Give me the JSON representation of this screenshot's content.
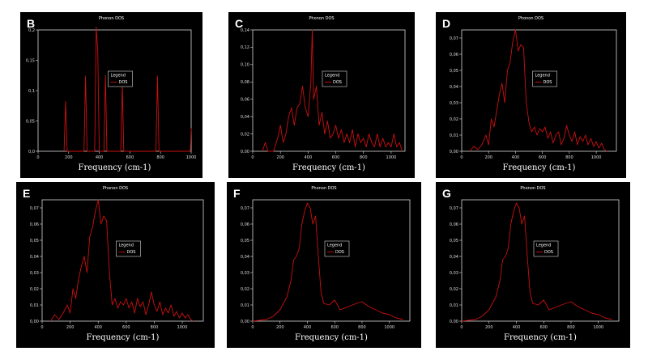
{
  "figure": {
    "panel_letters": [
      "B",
      "C",
      "D",
      "E",
      "F",
      "G"
    ]
  },
  "chart_data": [
    {
      "panel": "B",
      "type": "line",
      "title": "Phonon DOS",
      "xlabel": "Frequency (cm-1)",
      "ylabel": "",
      "xlim": [
        0,
        1000
      ],
      "ylim": [
        0,
        0.2
      ],
      "xticks": [
        0,
        200,
        400,
        600,
        800,
        1000
      ],
      "yticks": [
        0,
        0.05,
        0.1,
        0.15,
        0.2
      ],
      "ytick_labels": [
        "0,0",
        "0,05",
        "0,1",
        "0,15",
        "0,2"
      ],
      "legend": {
        "title": "Legend",
        "entries": [
          "DOS"
        ],
        "placement": "center"
      },
      "color": "#cc1010",
      "series": [
        {
          "name": "DOS",
          "x": [
            170,
            180,
            190,
            300,
            310,
            320,
            370,
            380,
            390,
            400,
            430,
            440,
            450,
            540,
            550,
            560,
            770,
            780,
            790,
            995,
            1000
          ],
          "y": [
            0,
            0.082,
            0,
            0,
            0.124,
            0,
            0,
            0.205,
            0.165,
            0,
            0,
            0.125,
            0,
            0,
            0.11,
            0,
            0,
            0.124,
            0,
            0,
            0.038
          ]
        }
      ]
    },
    {
      "panel": "C",
      "type": "line",
      "title": "Phonon DOS",
      "xlabel": "Frequency (cm-1)",
      "ylabel": "",
      "xlim": [
        0,
        1100
      ],
      "ylim": [
        0,
        0.14
      ],
      "xticks": [
        0,
        200,
        400,
        600,
        800,
        1000
      ],
      "yticks": [
        0,
        0.02,
        0.04,
        0.06,
        0.08,
        0.1,
        0.12,
        0.14
      ],
      "ytick_labels": [
        "0,00",
        "0,02",
        "0,04",
        "0,06",
        "0,08",
        "0,10",
        "0,12",
        "0,14"
      ],
      "legend": {
        "title": "Legend",
        "entries": [
          "DOS"
        ],
        "placement": "center"
      },
      "color": "#cc1010",
      "series": [
        {
          "name": "DOS",
          "x": [
            70,
            90,
            110,
            150,
            180,
            200,
            220,
            240,
            260,
            280,
            300,
            320,
            340,
            360,
            380,
            400,
            420,
            430,
            440,
            460,
            480,
            500,
            520,
            540,
            560,
            580,
            600,
            620,
            640,
            660,
            680,
            700,
            720,
            740,
            760,
            780,
            800,
            820,
            840,
            860,
            880,
            900,
            920,
            940,
            960,
            980,
            1000,
            1020,
            1040,
            1060,
            1080
          ],
          "y": [
            0,
            0.01,
            0,
            0,
            0.015,
            0.03,
            0.01,
            0.02,
            0.04,
            0.05,
            0.03,
            0.05,
            0.055,
            0.075,
            0.05,
            0.04,
            0.08,
            0.14,
            0.06,
            0.075,
            0.03,
            0.045,
            0.02,
            0.035,
            0.015,
            0.02,
            0.03,
            0.015,
            0.025,
            0.01,
            0.02,
            0.01,
            0.025,
            0.005,
            0.02,
            0.01,
            0.015,
            0.005,
            0.02,
            0.01,
            0.005,
            0.02,
            0.005,
            0.015,
            0.005,
            0.01,
            0.005,
            0.02,
            0.005,
            0.01,
            0
          ]
        }
      ]
    },
    {
      "panel": "D",
      "type": "line",
      "title": "Phonon DOS",
      "xlabel": "Frequency (cm-1)",
      "ylabel": "",
      "xlim": [
        0,
        1150
      ],
      "ylim": [
        0,
        0.075
      ],
      "xticks": [
        0,
        200,
        400,
        600,
        800,
        1000
      ],
      "yticks": [
        0,
        0.01,
        0.02,
        0.03,
        0.04,
        0.05,
        0.06,
        0.07
      ],
      "ytick_labels": [
        "0,00",
        "0,01",
        "0,02",
        "0,03",
        "0,04",
        "0,05",
        "0,06",
        "0,07"
      ],
      "legend": {
        "title": "Legend",
        "entries": [
          "DOS"
        ],
        "placement": "center"
      },
      "color": "#cc1010",
      "series": [
        {
          "name": "DOS",
          "x": [
            60,
            90,
            120,
            150,
            180,
            200,
            220,
            240,
            260,
            280,
            300,
            320,
            340,
            360,
            380,
            400,
            420,
            440,
            460,
            480,
            500,
            520,
            540,
            560,
            580,
            600,
            620,
            640,
            660,
            680,
            700,
            720,
            740,
            760,
            780,
            800,
            820,
            840,
            860,
            880,
            900,
            920,
            940,
            960,
            980,
            1000,
            1020,
            1040,
            1060,
            1080
          ],
          "y": [
            0,
            0.003,
            0.001,
            0.004,
            0.01,
            0.004,
            0.02,
            0.015,
            0.025,
            0.035,
            0.042,
            0.03,
            0.05,
            0.055,
            0.068,
            0.075,
            0.062,
            0.066,
            0.064,
            0.03,
            0.018,
            0.012,
            0.015,
            0.01,
            0.014,
            0.012,
            0.015,
            0.008,
            0.012,
            0.005,
            0.01,
            0.012,
            0.004,
            0.008,
            0.016,
            0.01,
            0.006,
            0.012,
            0.004,
            0.009,
            0.006,
            0.01,
            0.004,
            0.008,
            0.003,
            0.006,
            0.002,
            0.005,
            0.001,
            0
          ]
        }
      ]
    },
    {
      "panel": "E",
      "type": "line",
      "title": "Phonon DOS",
      "xlabel": "Frequency (cm-1)",
      "ylabel": "",
      "xlim": [
        0,
        1150
      ],
      "ylim": [
        0,
        0.075
      ],
      "xticks": [
        0,
        200,
        400,
        600,
        800,
        1000
      ],
      "yticks": [
        0,
        0.01,
        0.02,
        0.03,
        0.04,
        0.05,
        0.06,
        0.07
      ],
      "ytick_labels": [
        "0,00",
        "0,01",
        "0,02",
        "0,03",
        "0,04",
        "0,05",
        "0,06",
        "0,07"
      ],
      "legend": {
        "title": "Legend",
        "entries": [
          "DOS"
        ],
        "placement": "center"
      },
      "color": "#cc1010",
      "series": [
        {
          "name": "DOS",
          "x": [
            60,
            90,
            120,
            150,
            180,
            200,
            220,
            240,
            260,
            280,
            300,
            320,
            340,
            360,
            380,
            400,
            420,
            440,
            460,
            480,
            500,
            520,
            540,
            560,
            580,
            600,
            620,
            640,
            660,
            680,
            700,
            720,
            740,
            760,
            780,
            800,
            820,
            840,
            860,
            880,
            900,
            920,
            940,
            960,
            980,
            1000,
            1020,
            1040,
            1060,
            1080
          ],
          "y": [
            0,
            0.004,
            0.001,
            0.005,
            0.01,
            0.005,
            0.02,
            0.014,
            0.026,
            0.034,
            0.04,
            0.03,
            0.052,
            0.058,
            0.068,
            0.075,
            0.06,
            0.065,
            0.062,
            0.03,
            0.01,
            0.014,
            0.008,
            0.012,
            0.01,
            0.014,
            0.008,
            0.012,
            0.005,
            0.014,
            0.009,
            0.012,
            0.004,
            0.01,
            0.018,
            0.01,
            0.006,
            0.012,
            0.004,
            0.008,
            0.005,
            0.01,
            0.003,
            0.006,
            0.002,
            0.005,
            0.002,
            0.004,
            0.001,
            0
          ]
        }
      ]
    },
    {
      "panel": "F",
      "type": "line",
      "title": "Phonon DOS",
      "xlabel": "Frequency (cm-1)",
      "ylabel": "",
      "xlim": [
        0,
        1150
      ],
      "ylim": [
        0,
        0.075
      ],
      "xticks": [
        0,
        200,
        400,
        600,
        800,
        1000
      ],
      "yticks": [
        0,
        0.01,
        0.02,
        0.03,
        0.04,
        0.05,
        0.06,
        0.07
      ],
      "ytick_labels": [
        "0,00",
        "0,01",
        "0,02",
        "0,03",
        "0,04",
        "0,05",
        "0,06",
        "0,07"
      ],
      "legend": {
        "title": "Legend",
        "entries": [
          "DOS"
        ],
        "placement": "center"
      },
      "color": "#cc1010",
      "series": [
        {
          "name": "DOS",
          "x": [
            0,
            50,
            100,
            150,
            200,
            250,
            280,
            300,
            320,
            340,
            360,
            380,
            400,
            420,
            440,
            460,
            480,
            500,
            520,
            560,
            600,
            640,
            700,
            760,
            800,
            850,
            900,
            950,
            1000,
            1050,
            1100
          ],
          "y": [
            0,
            0.0005,
            0.001,
            0.003,
            0.007,
            0.015,
            0.025,
            0.038,
            0.04,
            0.045,
            0.06,
            0.068,
            0.073,
            0.07,
            0.06,
            0.065,
            0.04,
            0.018,
            0.011,
            0.01,
            0.013,
            0.007,
            0.009,
            0.011,
            0.012,
            0.009,
            0.007,
            0.005,
            0.004,
            0.002,
            0.001
          ]
        }
      ]
    },
    {
      "panel": "G",
      "type": "line",
      "title": "Phonon DOS",
      "xlabel": "Frequency (cm-1)",
      "ylabel": "",
      "xlim": [
        0,
        1150
      ],
      "ylim": [
        0,
        0.075
      ],
      "xticks": [
        0,
        200,
        400,
        600,
        800,
        1000
      ],
      "yticks": [
        0,
        0.01,
        0.02,
        0.03,
        0.04,
        0.05,
        0.06,
        0.07
      ],
      "ytick_labels": [
        "0,00",
        "0,01",
        "0,02",
        "0,03",
        "0,04",
        "0,05",
        "0,06",
        "0,07"
      ],
      "legend": {
        "title": "Legend",
        "entries": [
          "DOS"
        ],
        "placement": "center"
      },
      "color": "#cc1010",
      "series": [
        {
          "name": "DOS",
          "x": [
            0,
            50,
            100,
            150,
            200,
            250,
            280,
            300,
            320,
            340,
            360,
            380,
            400,
            420,
            440,
            460,
            480,
            500,
            520,
            560,
            600,
            640,
            700,
            760,
            800,
            850,
            900,
            950,
            1000,
            1050,
            1100
          ],
          "y": [
            0,
            0.0005,
            0.001,
            0.003,
            0.007,
            0.015,
            0.025,
            0.038,
            0.04,
            0.045,
            0.06,
            0.068,
            0.073,
            0.07,
            0.06,
            0.065,
            0.04,
            0.018,
            0.011,
            0.01,
            0.013,
            0.007,
            0.009,
            0.011,
            0.012,
            0.009,
            0.007,
            0.005,
            0.004,
            0.002,
            0.001
          ]
        }
      ]
    }
  ]
}
